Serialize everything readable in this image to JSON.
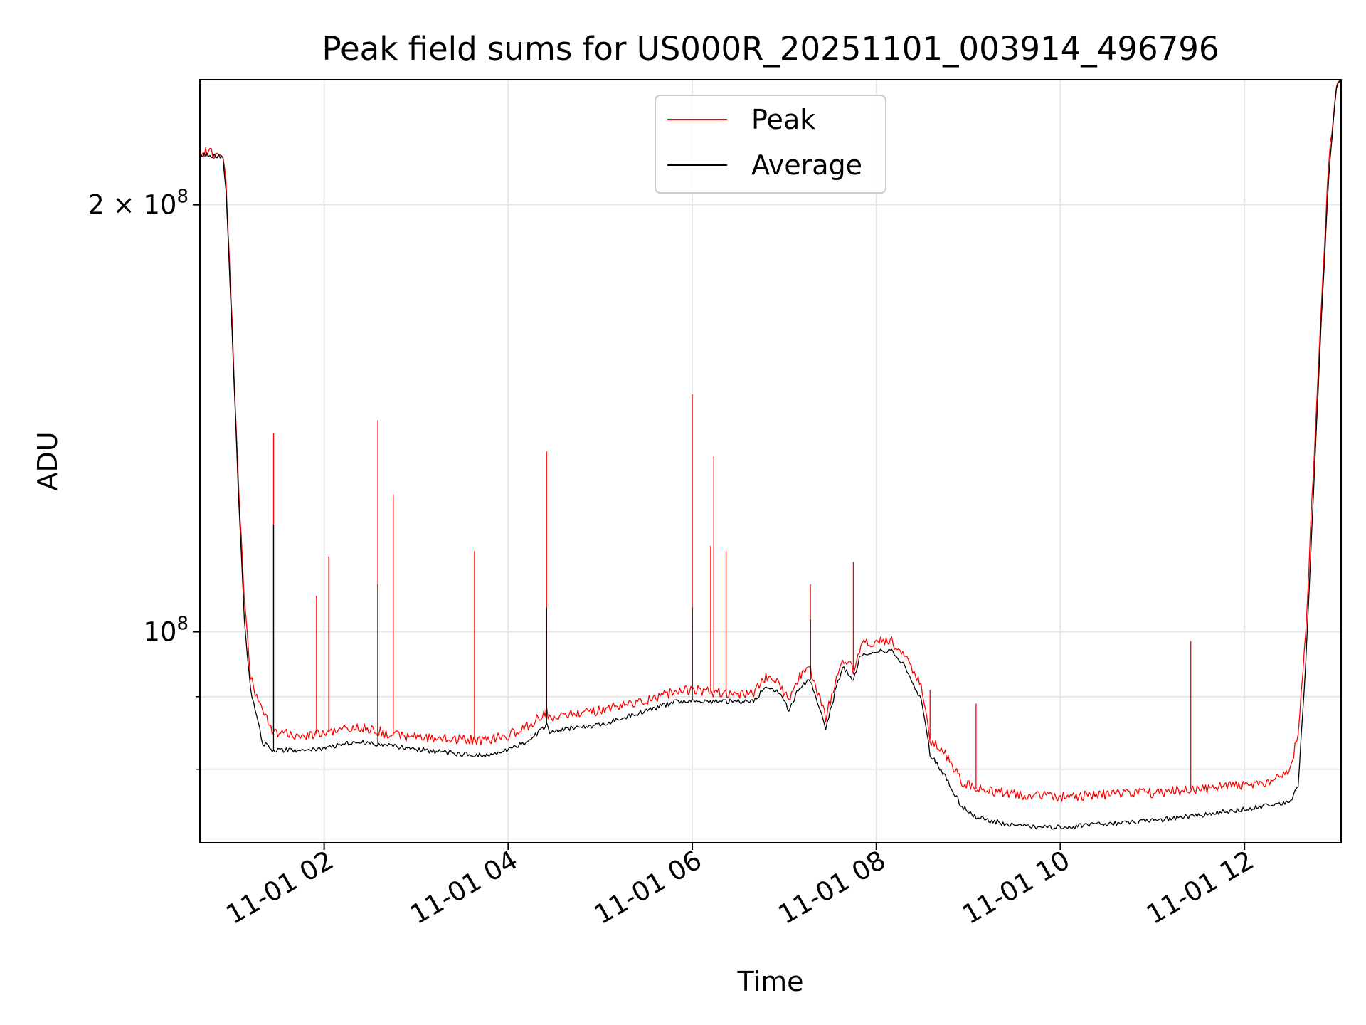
{
  "chart_data": {
    "type": "line",
    "title": "Peak field sums for US000R_20251101_003914_496796",
    "xlabel": "Time",
    "ylabel": "ADU",
    "yscale": "log",
    "xlim": [
      "2025-11-01T00:39",
      "2025-11-01T13:03"
    ],
    "ylim": [
      71000000,
      245000000
    ],
    "x_ticks": [
      {
        "value": "2025-11-01T02:00",
        "label": "11-01 02"
      },
      {
        "value": "2025-11-01T04:00",
        "label": "11-01 04"
      },
      {
        "value": "2025-11-01T06:00",
        "label": "11-01 06"
      },
      {
        "value": "2025-11-01T08:00",
        "label": "11-01 08"
      },
      {
        "value": "2025-11-01T10:00",
        "label": "11-01 10"
      },
      {
        "value": "2025-11-01T12:00",
        "label": "11-01 12"
      }
    ],
    "y_ticks_major": [
      {
        "value": 100000000,
        "label": "10",
        "sup": "8"
      },
      {
        "value": 200000000,
        "label": "2 × 10",
        "sup": "8"
      }
    ],
    "y_ticks_minor": [
      80000000,
      90000000
    ],
    "grid": true,
    "legend_position": "top-center",
    "series": [
      {
        "name": "Peak",
        "color": "#ff0000",
        "x": [
          "2025-11-01T00:39",
          "2025-11-01T00:54",
          "2025-11-01T00:56",
          "2025-11-01T01:00",
          "2025-11-01T01:04",
          "2025-11-01T01:08",
          "2025-11-01T01:12",
          "2025-11-01T01:16",
          "2025-11-01T01:20",
          "2025-11-01T01:27",
          "2025-11-01T01:40",
          "2025-11-01T02:00",
          "2025-11-01T02:15",
          "2025-11-01T02:30",
          "2025-11-01T02:45",
          "2025-11-01T03:00",
          "2025-11-01T03:15",
          "2025-11-01T03:30",
          "2025-11-01T03:45",
          "2025-11-01T04:00",
          "2025-11-01T04:15",
          "2025-11-01T04:25",
          "2025-11-01T04:27",
          "2025-11-01T04:40",
          "2025-11-01T05:00",
          "2025-11-01T05:30",
          "2025-11-01T05:50",
          "2025-11-01T06:00",
          "2025-11-01T06:20",
          "2025-11-01T06:40",
          "2025-11-01T06:48",
          "2025-11-01T06:56",
          "2025-11-01T07:03",
          "2025-11-01T07:10",
          "2025-11-01T07:17",
          "2025-11-01T07:27",
          "2025-11-01T07:33",
          "2025-11-01T07:38",
          "2025-11-01T07:45",
          "2025-11-01T07:50",
          "2025-11-01T08:00",
          "2025-11-01T08:10",
          "2025-11-01T08:20",
          "2025-11-01T08:30",
          "2025-11-01T08:35",
          "2025-11-01T08:45",
          "2025-11-01T08:55",
          "2025-11-01T09:05",
          "2025-11-01T09:30",
          "2025-11-01T10:00",
          "2025-11-01T10:30",
          "2025-11-01T11:00",
          "2025-11-01T11:30",
          "2025-11-01T12:00",
          "2025-11-01T12:20",
          "2025-11-01T12:30",
          "2025-11-01T12:35",
          "2025-11-01T12:40",
          "2025-11-01T12:45",
          "2025-11-01T12:50",
          "2025-11-01T12:55",
          "2025-11-01T13:00",
          "2025-11-01T13:03"
        ],
        "y": [
          218000000,
          217000000,
          208000000,
          165000000,
          128000000,
          105000000,
          93000000,
          90000000,
          88000000,
          85000000,
          84500000,
          84800000,
          85500000,
          85500000,
          84500000,
          84300000,
          84000000,
          84000000,
          83800000,
          84500000,
          86000000,
          88000000,
          87000000,
          87500000,
          88000000,
          89500000,
          90800000,
          91000000,
          90500000,
          90500000,
          93000000,
          92000000,
          89500000,
          93000000,
          94000000,
          87000000,
          92000000,
          96000000,
          94000000,
          98000000,
          98500000,
          98500000,
          95500000,
          91000000,
          84000000,
          82000000,
          78500000,
          77500000,
          76800000,
          76500000,
          76800000,
          77000000,
          77500000,
          78000000,
          78500000,
          80000000,
          85000000,
          100000000,
          130000000,
          170000000,
          215000000,
          244000000,
          245000000
        ]
      },
      {
        "name": "Average",
        "color": "#000000",
        "x": [
          "2025-11-01T00:39",
          "2025-11-01T00:54",
          "2025-11-01T00:56",
          "2025-11-01T01:00",
          "2025-11-01T01:04",
          "2025-11-01T01:08",
          "2025-11-01T01:12",
          "2025-11-01T01:16",
          "2025-11-01T01:20",
          "2025-11-01T01:27",
          "2025-11-01T01:40",
          "2025-11-01T02:00",
          "2025-11-01T02:15",
          "2025-11-01T02:30",
          "2025-11-01T02:45",
          "2025-11-01T03:00",
          "2025-11-01T03:15",
          "2025-11-01T03:30",
          "2025-11-01T03:45",
          "2025-11-01T04:00",
          "2025-11-01T04:15",
          "2025-11-01T04:25",
          "2025-11-01T04:27",
          "2025-11-01T04:40",
          "2025-11-01T05:00",
          "2025-11-01T05:30",
          "2025-11-01T05:50",
          "2025-11-01T06:00",
          "2025-11-01T06:20",
          "2025-11-01T06:40",
          "2025-11-01T06:48",
          "2025-11-01T06:56",
          "2025-11-01T07:03",
          "2025-11-01T07:10",
          "2025-11-01T07:17",
          "2025-11-01T07:27",
          "2025-11-01T07:33",
          "2025-11-01T07:38",
          "2025-11-01T07:45",
          "2025-11-01T07:50",
          "2025-11-01T08:00",
          "2025-11-01T08:10",
          "2025-11-01T08:20",
          "2025-11-01T08:30",
          "2025-11-01T08:35",
          "2025-11-01T08:45",
          "2025-11-01T08:55",
          "2025-11-01T09:05",
          "2025-11-01T09:30",
          "2025-11-01T10:00",
          "2025-11-01T10:30",
          "2025-11-01T11:00",
          "2025-11-01T11:30",
          "2025-11-01T12:00",
          "2025-11-01T12:20",
          "2025-11-01T12:30",
          "2025-11-01T12:35",
          "2025-11-01T12:40",
          "2025-11-01T12:45",
          "2025-11-01T12:50",
          "2025-11-01T12:55",
          "2025-11-01T13:00",
          "2025-11-01T13:03"
        ],
        "y": [
          217000000,
          216000000,
          205000000,
          163000000,
          126000000,
          102000000,
          91000000,
          87000000,
          83500000,
          82500000,
          82500000,
          82700000,
          83500000,
          83500000,
          83000000,
          82700000,
          82300000,
          82000000,
          81800000,
          82500000,
          84000000,
          86000000,
          85000000,
          85500000,
          86000000,
          88000000,
          89300000,
          89500000,
          89300000,
          89300000,
          91500000,
          90800000,
          88000000,
          91500000,
          92500000,
          85500000,
          90500000,
          94500000,
          92500000,
          96500000,
          97000000,
          97000000,
          94000000,
          89000000,
          82000000,
          79000000,
          75500000,
          74000000,
          73000000,
          72800000,
          73200000,
          73600000,
          74200000,
          75000000,
          75500000,
          76000000,
          78000000,
          95000000,
          125000000,
          165000000,
          210000000,
          242000000,
          245000000
        ]
      }
    ],
    "spikes": [
      {
        "series": "Peak",
        "x": "2025-11-01T01:27",
        "y": 138000000
      },
      {
        "series": "Peak",
        "x": "2025-11-01T02:35",
        "y": 141000000
      },
      {
        "series": "Peak",
        "x": "2025-11-01T02:45",
        "y": 125000000
      },
      {
        "series": "Peak",
        "x": "2025-11-01T03:38",
        "y": 114000000
      },
      {
        "series": "Peak",
        "x": "2025-11-01T04:25",
        "y": 134000000
      },
      {
        "series": "Peak",
        "x": "2025-11-01T06:00",
        "y": 147000000
      },
      {
        "series": "Peak",
        "x": "2025-11-01T06:14",
        "y": 133000000
      },
      {
        "series": "Peak",
        "x": "2025-11-01T06:12",
        "y": 115000000
      },
      {
        "series": "Peak",
        "x": "2025-11-01T06:22",
        "y": 114000000
      },
      {
        "series": "Peak",
        "x": "2025-11-01T07:17",
        "y": 108000000
      },
      {
        "series": "Peak",
        "x": "2025-11-01T07:45",
        "y": 112000000
      },
      {
        "series": "Peak",
        "x": "2025-11-01T02:03",
        "y": 113000000
      },
      {
        "series": "Peak",
        "x": "2025-11-01T01:55",
        "y": 106000000
      },
      {
        "series": "Peak",
        "x": "2025-11-01T08:35",
        "y": 91000000
      },
      {
        "series": "Peak",
        "x": "2025-11-01T09:05",
        "y": 89000000
      },
      {
        "series": "Peak",
        "x": "2025-11-01T11:25",
        "y": 98500000
      },
      {
        "series": "Average",
        "x": "2025-11-01T01:27",
        "y": 119000000
      },
      {
        "series": "Average",
        "x": "2025-11-01T02:35",
        "y": 108000000
      },
      {
        "series": "Average",
        "x": "2025-11-01T04:25",
        "y": 104000000
      },
      {
        "series": "Average",
        "x": "2025-11-01T06:00",
        "y": 104000000
      },
      {
        "series": "Average",
        "x": "2025-11-01T07:17",
        "y": 102000000
      }
    ]
  }
}
